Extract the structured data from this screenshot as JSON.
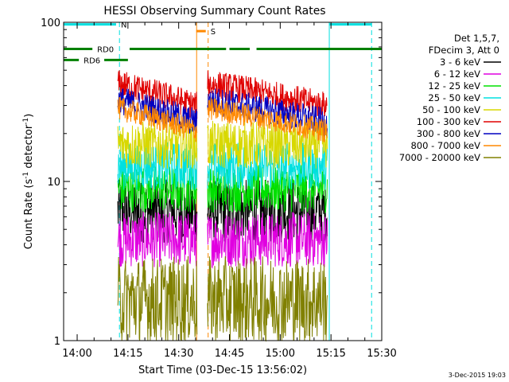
{
  "chart_data": {
    "type": "line",
    "title": "HESSI Observing Summary Count Rates",
    "xlabel": "Start Time (03-Dec-15 13:56:02)",
    "ylabel": "Count Rate (s⁻¹ detector⁻¹)",
    "ylabel_parts": {
      "main": "Count Rate (s",
      "exp1": "-1",
      "mid": " detector",
      "exp2": "-1",
      "end": ")"
    },
    "yscale": "log",
    "ylim": [
      1,
      100
    ],
    "xlim_minutes": [
      -4,
      36
    ],
    "x_ticks": [
      {
        "label": "14:00",
        "m": 0
      },
      {
        "label": "14:15",
        "m": 15
      },
      {
        "label": "14:30",
        "m": 30
      },
      {
        "label": "14:45",
        "m": 45
      },
      {
        "label": "15:00",
        "m": 60
      },
      {
        "label": "15:15",
        "m": 75
      },
      {
        "label": "15:30",
        "m": 90
      }
    ],
    "y_ticks": [
      {
        "label": "1",
        "v": 1
      },
      {
        "label": "10",
        "v": 10
      },
      {
        "label": "100",
        "v": 100
      }
    ],
    "legend": {
      "header": [
        "Det 1,5,7,",
        "FDecim 3, Att 0"
      ],
      "placement": "right"
    },
    "series": [
      {
        "name": "3 - 6 keV",
        "color": "#000000",
        "level": 6.5,
        "noise": 0.4
      },
      {
        "name": "6 - 12 keV",
        "color": "#e000e0",
        "level": 4.3,
        "noise": 0.35
      },
      {
        "name": "12 - 25 keV",
        "color": "#00e000",
        "level": 9.0,
        "noise": 0.3
      },
      {
        "name": "25 - 50 keV",
        "color": "#00e0e0",
        "level": 12.5,
        "noise": 0.3
      },
      {
        "name": "50 - 100 keV",
        "color": "#d8d800",
        "level": 17.0,
        "noise": 0.3
      },
      {
        "name": "100 - 300 keV",
        "color": "#e00000",
        "level": 33.0,
        "noise": 0.18
      },
      {
        "name": "300 - 800 keV",
        "color": "#0000c0",
        "level": 26.0,
        "noise": 0.18
      },
      {
        "name": "800 - 7000 keV",
        "color": "#ff8800",
        "level": 23.0,
        "noise": 0.15
      },
      {
        "name": "7000 - 20000 keV",
        "color": "#808000",
        "level": 1.8,
        "noise": 0.55
      }
    ],
    "segments_minutes": [
      [
        12,
        35.5
      ],
      [
        38.5,
        74
      ]
    ],
    "flags": {
      "N": {
        "label": "N",
        "color": "#00e0e0",
        "row": 97,
        "ranges_minutes": [
          [
            -4,
            11.5
          ],
          [
            74.5,
            87
          ]
        ]
      },
      "S": {
        "label": "S",
        "color": "#ff8800",
        "row": 88,
        "ranges_minutes": [
          [
            35.2,
            38
          ]
        ]
      },
      "RD0": {
        "label": "RD0",
        "color": "#008000",
        "row": 68,
        "ranges_minutes": [
          [
            -4,
            4.5
          ],
          [
            15.5,
            44
          ],
          [
            45,
            51
          ],
          [
            53,
            90
          ]
        ]
      },
      "RD6": {
        "label": "RD6",
        "color": "#008000",
        "row": 58,
        "ranges_minutes": [
          [
            -4,
            0.5
          ],
          [
            8,
            15
          ]
        ]
      }
    },
    "markers_minutes": [
      {
        "m": -4,
        "color": "#00e0e0",
        "dash": "solid"
      },
      {
        "m": 12.5,
        "color": "#00e0e0",
        "dash": "dash"
      },
      {
        "m": 35.3,
        "color": "#ff8800",
        "dash": "solid"
      },
      {
        "m": 38.7,
        "color": "#ff8800",
        "dash": "dash"
      },
      {
        "m": 74.5,
        "color": "#00e0e0",
        "dash": "solid"
      },
      {
        "m": 87.0,
        "color": "#00e0e0",
        "dash": "dash"
      }
    ]
  },
  "footer_date": "3-Dec-2015 19:03"
}
